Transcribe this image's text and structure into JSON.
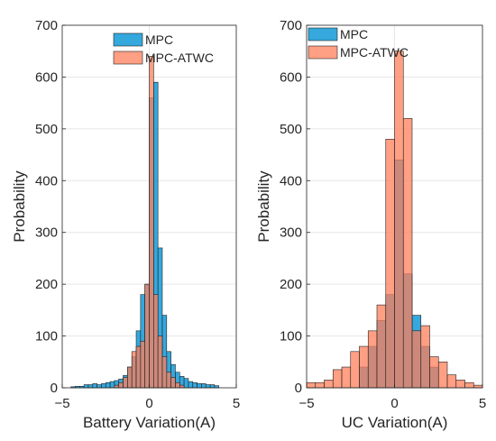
{
  "chart_data": [
    {
      "type": "histogram",
      "title": "",
      "xlabel": "Battery Variation(A)",
      "ylabel": "Probability",
      "xlim": [
        -5,
        5
      ],
      "ylim": [
        0,
        700
      ],
      "xticks": [
        -5,
        0,
        5
      ],
      "yticks": [
        0,
        100,
        200,
        300,
        400,
        500,
        600,
        700
      ],
      "grid": true,
      "legend_position": "top-center",
      "series": [
        {
          "name": "MPC",
          "color": "#1f9fd9",
          "bin_width": 0.25,
          "bins": [
            [
              -4.5,
              2
            ],
            [
              -4.25,
              3
            ],
            [
              -4.0,
              3
            ],
            [
              -3.75,
              6
            ],
            [
              -3.5,
              6
            ],
            [
              -3.25,
              8
            ],
            [
              -3.0,
              6
            ],
            [
              -2.75,
              8
            ],
            [
              -2.5,
              10
            ],
            [
              -2.25,
              12
            ],
            [
              -2.0,
              14
            ],
            [
              -1.75,
              17
            ],
            [
              -1.5,
              24
            ],
            [
              -1.25,
              40
            ],
            [
              -1.0,
              60
            ],
            [
              -0.75,
              110
            ],
            [
              -0.5,
              180
            ],
            [
              -0.25,
              200
            ],
            [
              0.0,
              560
            ],
            [
              0.25,
              590
            ],
            [
              0.5,
              270
            ],
            [
              0.75,
              140
            ],
            [
              1.0,
              70
            ],
            [
              1.25,
              45
            ],
            [
              1.5,
              30
            ],
            [
              1.75,
              22
            ],
            [
              2.0,
              18
            ],
            [
              2.25,
              12
            ],
            [
              2.5,
              10
            ],
            [
              2.75,
              8
            ],
            [
              3.0,
              8
            ],
            [
              3.25,
              6
            ],
            [
              3.5,
              6
            ],
            [
              3.75,
              4
            ]
          ]
        },
        {
          "name": "MPC-ATWC",
          "color": "#ff7f5a",
          "bin_width": 0.25,
          "bins": [
            [
              -2.0,
              5
            ],
            [
              -1.75,
              10
            ],
            [
              -1.5,
              20
            ],
            [
              -1.25,
              40
            ],
            [
              -1.0,
              70
            ],
            [
              -0.75,
              80
            ],
            [
              -0.5,
              90
            ],
            [
              -0.25,
              200
            ],
            [
              0.0,
              640
            ],
            [
              0.25,
              180
            ],
            [
              0.5,
              100
            ],
            [
              0.75,
              60
            ],
            [
              1.0,
              30
            ],
            [
              1.25,
              20
            ],
            [
              1.5,
              10
            ],
            [
              1.75,
              5
            ]
          ]
        }
      ]
    },
    {
      "type": "histogram",
      "title": "",
      "xlabel": "UC Variation(A)",
      "ylabel": "Probability",
      "xlim": [
        -5,
        5
      ],
      "ylim": [
        0,
        700
      ],
      "xticks": [
        -5,
        0,
        5
      ],
      "yticks": [
        0,
        100,
        200,
        300,
        400,
        500,
        600,
        700
      ],
      "grid": true,
      "legend_position": "top-left",
      "series": [
        {
          "name": "MPC",
          "color": "#1f9fd9",
          "bin_width": 0.5,
          "bins": [
            [
              -2.0,
              40
            ],
            [
              -1.5,
              80
            ],
            [
              -1.0,
              130
            ],
            [
              -0.5,
              180
            ],
            [
              0.0,
              440
            ],
            [
              0.5,
              220
            ],
            [
              1.0,
              140
            ],
            [
              1.5,
              80
            ],
            [
              2.0,
              40
            ]
          ]
        },
        {
          "name": "MPC-ATWC",
          "color": "#ff7f5a",
          "bin_width": 0.5,
          "bins": [
            [
              -5.0,
              10
            ],
            [
              -4.5,
              10
            ],
            [
              -4.0,
              15
            ],
            [
              -3.5,
              35
            ],
            [
              -3.0,
              40
            ],
            [
              -2.5,
              70
            ],
            [
              -2.0,
              80
            ],
            [
              -1.5,
              110
            ],
            [
              -1.0,
              160
            ],
            [
              -0.5,
              480
            ],
            [
              0.0,
              650
            ],
            [
              0.5,
              520
            ],
            [
              1.0,
              110
            ],
            [
              1.5,
              120
            ],
            [
              2.0,
              60
            ],
            [
              2.5,
              50
            ],
            [
              3.0,
              25
            ],
            [
              3.5,
              15
            ],
            [
              4.0,
              10
            ],
            [
              4.5,
              5
            ]
          ]
        }
      ]
    }
  ]
}
